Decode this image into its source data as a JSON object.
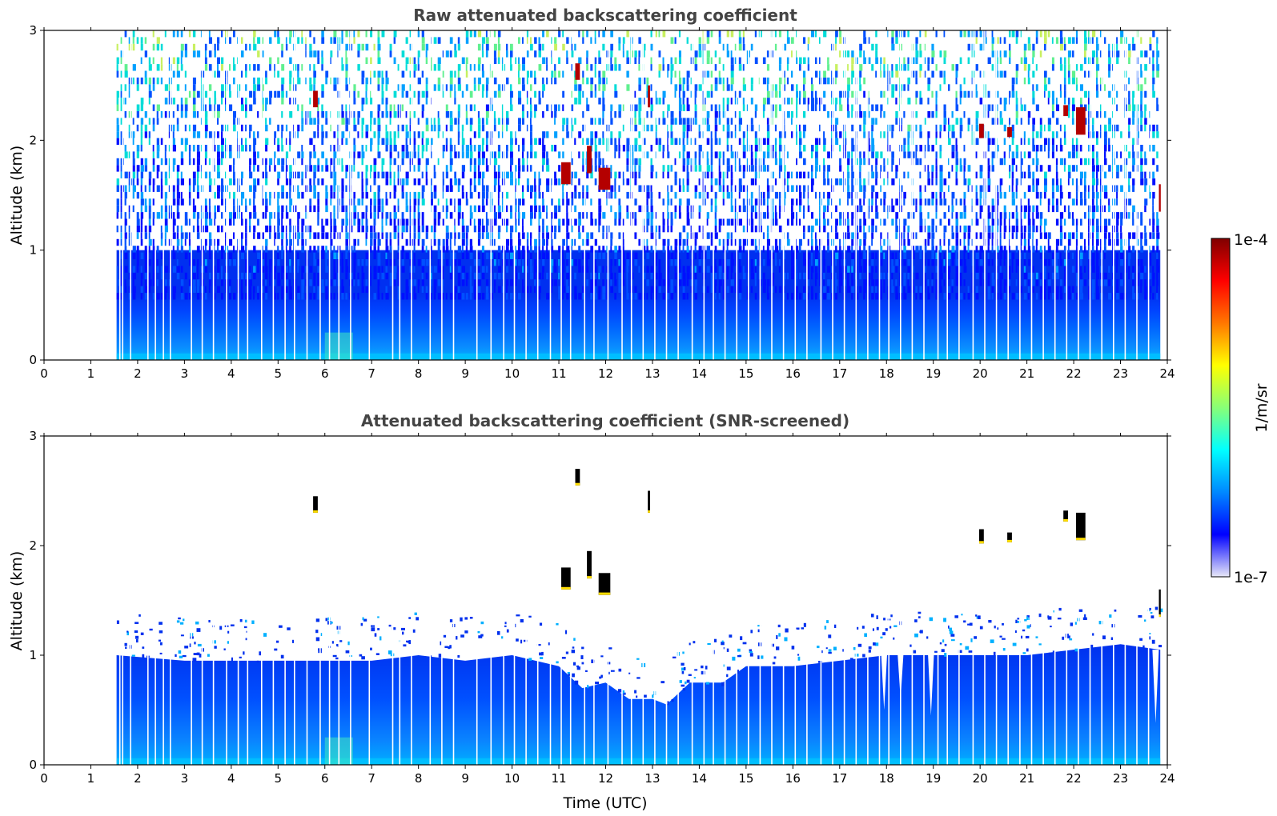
{
  "colors": {
    "colormap": [
      "#e8e8f8",
      "#0000ff",
      "#0088ff",
      "#00ffff",
      "#88ff77",
      "#ffff00",
      "#ff7700",
      "#ff0000",
      "#800000"
    ],
    "frame": "#000000",
    "title": "#444444"
  },
  "chart_data": [
    {
      "type": "heatmap",
      "title": "Raw attenuated backscattering coefficient",
      "xlabel": "",
      "ylabel": "Altitude (km)",
      "xlim": [
        0,
        24
      ],
      "ylim": [
        0,
        3
      ],
      "xticks": [
        "0",
        "1",
        "2",
        "3",
        "4",
        "5",
        "6",
        "7",
        "8",
        "9",
        "10",
        "11",
        "12",
        "13",
        "14",
        "15",
        "16",
        "17",
        "18",
        "19",
        "20",
        "21",
        "22",
        "23",
        "24"
      ],
      "yticks": [
        "0",
        "1",
        "2",
        "3"
      ],
      "data_start_hour": 1.55,
      "data_end_hour": 23.85,
      "gaps_hours": [
        1.62,
        1.68,
        1.85,
        2.22,
        2.38,
        2.55,
        2.7,
        3.15,
        3.38,
        3.62,
        3.9,
        4.15,
        4.35,
        4.65,
        4.9,
        5.15,
        5.35,
        5.62,
        5.9,
        6.1,
        6.3,
        6.55,
        6.95,
        7.45,
        7.6,
        7.85,
        8.25,
        8.5,
        8.75,
        9.25,
        9.55,
        9.82,
        10.05,
        10.3,
        10.55,
        10.82,
        11.05,
        11.25,
        11.55,
        11.75,
        12.05,
        12.35,
        12.55,
        12.8,
        13.05,
        13.3,
        13.55,
        13.85,
        14.1,
        14.3,
        14.55,
        14.8,
        15.05,
        15.3,
        15.55,
        15.8,
        16.05,
        16.3,
        16.6,
        16.85,
        17.1,
        17.35,
        17.6,
        17.85,
        18.05,
        18.3,
        18.55,
        18.8,
        19.1,
        19.3,
        19.55,
        19.85,
        20.1,
        20.35,
        20.6,
        20.85,
        21.1,
        21.35,
        21.6,
        21.85,
        22.1,
        22.35,
        22.6,
        22.85,
        23.1,
        23.35,
        23.6
      ],
      "clouds": [
        {
          "t0": 5.75,
          "t1": 5.85,
          "z0": 2.3,
          "z1": 2.45
        },
        {
          "t0": 11.05,
          "t1": 11.25,
          "z0": 1.6,
          "z1": 1.8
        },
        {
          "t0": 11.35,
          "t1": 11.45,
          "z0": 2.55,
          "z1": 2.7
        },
        {
          "t0": 11.6,
          "t1": 11.7,
          "z0": 1.7,
          "z1": 1.95
        },
        {
          "t0": 11.85,
          "t1": 12.1,
          "z0": 1.55,
          "z1": 1.75
        },
        {
          "t0": 12.9,
          "t1": 12.95,
          "z0": 2.3,
          "z1": 2.5
        },
        {
          "t0": 19.98,
          "t1": 20.08,
          "z0": 2.02,
          "z1": 2.15
        },
        {
          "t0": 20.58,
          "t1": 20.68,
          "z0": 2.03,
          "z1": 2.12
        },
        {
          "t0": 21.78,
          "t1": 21.88,
          "z0": 2.22,
          "z1": 2.32
        },
        {
          "t0": 22.05,
          "t1": 22.25,
          "z0": 2.05,
          "z1": 2.3
        },
        {
          "t0": 23.82,
          "t1": 23.86,
          "z0": 1.35,
          "z1": 1.6
        }
      ]
    },
    {
      "type": "heatmap",
      "title": "Attenuated backscattering coefficient (SNR-screened)",
      "xlabel": "Time (UTC)",
      "ylabel": "Altitude (km)",
      "xlim": [
        0,
        24
      ],
      "ylim": [
        0,
        3
      ],
      "xticks": [
        "0",
        "1",
        "2",
        "3",
        "4",
        "5",
        "6",
        "7",
        "8",
        "9",
        "10",
        "11",
        "12",
        "13",
        "14",
        "15",
        "16",
        "17",
        "18",
        "19",
        "20",
        "21",
        "22",
        "23",
        "24"
      ],
      "yticks": [
        "0",
        "1",
        "2",
        "3"
      ],
      "data_start_hour": 1.55,
      "data_end_hour": 23.85,
      "boundary_layer_top_km": [
        [
          1.55,
          1.0
        ],
        [
          3,
          0.95
        ],
        [
          5,
          0.95
        ],
        [
          7,
          0.95
        ],
        [
          8,
          1.0
        ],
        [
          9,
          0.95
        ],
        [
          10,
          1.0
        ],
        [
          11,
          0.9
        ],
        [
          11.5,
          0.7
        ],
        [
          12,
          0.75
        ],
        [
          12.5,
          0.6
        ],
        [
          13,
          0.6
        ],
        [
          13.3,
          0.55
        ],
        [
          13.8,
          0.75
        ],
        [
          14.5,
          0.75
        ],
        [
          15,
          0.9
        ],
        [
          16,
          0.9
        ],
        [
          17,
          0.95
        ],
        [
          18,
          1.0
        ],
        [
          19,
          1.0
        ],
        [
          20,
          1.0
        ],
        [
          21,
          1.0
        ],
        [
          22,
          1.05
        ],
        [
          23,
          1.1
        ],
        [
          23.85,
          1.05
        ]
      ],
      "screened_dips": [
        {
          "t": 17.95,
          "z": 0.5
        },
        {
          "t": 18.3,
          "z": 0.6
        },
        {
          "t": 18.95,
          "z": 0.45
        },
        {
          "t": 23.75,
          "z": 0.38
        }
      ],
      "clouds": [
        {
          "t0": 5.75,
          "t1": 5.85,
          "z0": 2.3,
          "z1": 2.45
        },
        {
          "t0": 11.05,
          "t1": 11.25,
          "z0": 1.6,
          "z1": 1.8
        },
        {
          "t0": 11.35,
          "t1": 11.45,
          "z0": 2.55,
          "z1": 2.7
        },
        {
          "t0": 11.6,
          "t1": 11.7,
          "z0": 1.7,
          "z1": 1.95
        },
        {
          "t0": 11.85,
          "t1": 12.1,
          "z0": 1.55,
          "z1": 1.75
        },
        {
          "t0": 12.9,
          "t1": 12.95,
          "z0": 2.3,
          "z1": 2.5
        },
        {
          "t0": 19.98,
          "t1": 20.08,
          "z0": 2.02,
          "z1": 2.15
        },
        {
          "t0": 20.58,
          "t1": 20.68,
          "z0": 2.03,
          "z1": 2.12
        },
        {
          "t0": 21.78,
          "t1": 21.88,
          "z0": 2.22,
          "z1": 2.32
        },
        {
          "t0": 22.05,
          "t1": 22.25,
          "z0": 2.05,
          "z1": 2.3
        },
        {
          "t0": 23.82,
          "t1": 23.86,
          "z0": 1.35,
          "z1": 1.6
        }
      ]
    }
  ],
  "colorbar": {
    "label": "1/m/sr",
    "max_label": "1e-4",
    "min_label": "1e-7",
    "scale": "log"
  }
}
